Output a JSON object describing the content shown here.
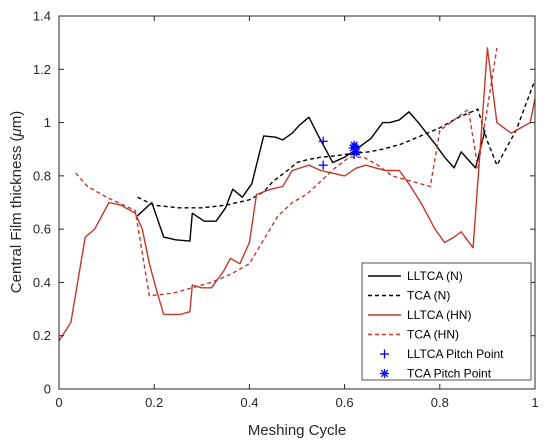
{
  "chart_data": {
    "type": "line",
    "xlabel": "Meshing Cycle",
    "ylabel_prefix": "Central Film thickness (",
    "ylabel_mu": "μ",
    "ylabel_suffix": "m)",
    "xlim": [
      0,
      1
    ],
    "ylim": [
      0,
      1.4
    ],
    "xticks": [
      0,
      0.2,
      0.4,
      0.6,
      0.8,
      1
    ],
    "xtick_labels": [
      "0",
      "0.2",
      "0.4",
      "0.6",
      "0.8",
      "1"
    ],
    "yticks": [
      0,
      0.2,
      0.4,
      0.6,
      0.8,
      1,
      1.2,
      1.4
    ],
    "ytick_labels": [
      "0",
      "0.2",
      "0.4",
      "0.6",
      "0.8",
      "1",
      "1.2",
      "1.4"
    ],
    "grid": false,
    "legend_position": "bottom-right",
    "series": [
      {
        "name": "LLTCA (N)",
        "color": "#000000",
        "style": "solid",
        "x": [
          0.165,
          0.195,
          0.22,
          0.245,
          0.275,
          0.28,
          0.305,
          0.33,
          0.35,
          0.365,
          0.385,
          0.405,
          0.43,
          0.455,
          0.47,
          0.49,
          0.505,
          0.525,
          0.545,
          0.575,
          0.6,
          0.625,
          0.655,
          0.68,
          0.695,
          0.715,
          0.735,
          0.755,
          0.79,
          0.81,
          0.83,
          0.845,
          0.875,
          0.895
        ],
        "y": [
          0.65,
          0.7,
          0.57,
          0.56,
          0.555,
          0.66,
          0.63,
          0.63,
          0.68,
          0.75,
          0.72,
          0.77,
          0.95,
          0.945,
          0.935,
          0.96,
          0.99,
          1.02,
          0.95,
          0.85,
          0.87,
          0.9,
          0.94,
          1.0,
          1.0,
          1.01,
          1.04,
          1.0,
          0.92,
          0.87,
          0.83,
          0.89,
          0.83,
          0.97
        ]
      },
      {
        "name": "TCA (N)",
        "color": "#000000",
        "style": "dashed",
        "x": [
          0.165,
          0.2,
          0.25,
          0.3,
          0.35,
          0.4,
          0.43,
          0.45,
          0.48,
          0.5,
          0.52,
          0.55,
          0.58,
          0.6,
          0.62,
          0.65,
          0.68,
          0.72,
          0.76,
          0.8,
          0.84,
          0.88,
          0.9,
          0.92,
          0.96,
          1.0
        ],
        "y": [
          0.72,
          0.69,
          0.68,
          0.68,
          0.69,
          0.71,
          0.74,
          0.78,
          0.82,
          0.85,
          0.86,
          0.87,
          0.875,
          0.88,
          0.885,
          0.89,
          0.9,
          0.92,
          0.95,
          0.98,
          1.02,
          1.05,
          0.93,
          0.84,
          0.97,
          1.16
        ]
      },
      {
        "name": "LLTCA (HN)",
        "color": "#c0392b",
        "style": "solid",
        "x": [
          0.0,
          0.025,
          0.055,
          0.075,
          0.105,
          0.13,
          0.16,
          0.175,
          0.19,
          0.205,
          0.22,
          0.235,
          0.255,
          0.275,
          0.28,
          0.3,
          0.32,
          0.345,
          0.36,
          0.38,
          0.4,
          0.415,
          0.445,
          0.47,
          0.49,
          0.525,
          0.55,
          0.575,
          0.6,
          0.625,
          0.645,
          0.665,
          0.685,
          0.7,
          0.715,
          0.735,
          0.76,
          0.79,
          0.81,
          0.83,
          0.845,
          0.87,
          0.9,
          0.92,
          0.95,
          0.97,
          0.99,
          1.0
        ],
        "y": [
          0.18,
          0.25,
          0.57,
          0.6,
          0.7,
          0.69,
          0.66,
          0.6,
          0.47,
          0.37,
          0.28,
          0.28,
          0.28,
          0.29,
          0.39,
          0.38,
          0.38,
          0.44,
          0.49,
          0.47,
          0.55,
          0.73,
          0.75,
          0.76,
          0.82,
          0.84,
          0.82,
          0.81,
          0.8,
          0.83,
          0.84,
          0.83,
          0.82,
          0.82,
          0.82,
          0.77,
          0.7,
          0.6,
          0.55,
          0.57,
          0.59,
          0.53,
          1.28,
          1.0,
          0.96,
          0.98,
          1.0,
          1.09
        ]
      },
      {
        "name": "TCA (HN)",
        "color": "#c0392b",
        "style": "dashed",
        "x": [
          0.035,
          0.06,
          0.1,
          0.16,
          0.19,
          0.24,
          0.28,
          0.32,
          0.36,
          0.4,
          0.43,
          0.46,
          0.49,
          0.52,
          0.55,
          0.58,
          0.61,
          0.64,
          0.67,
          0.7,
          0.74,
          0.78,
          0.8,
          0.83,
          0.86,
          0.88,
          0.92
        ],
        "y": [
          0.81,
          0.76,
          0.72,
          0.67,
          0.35,
          0.36,
          0.38,
          0.4,
          0.43,
          0.47,
          0.56,
          0.65,
          0.7,
          0.73,
          0.78,
          0.83,
          0.87,
          0.87,
          0.84,
          0.8,
          0.78,
          0.76,
          0.97,
          1.01,
          1.05,
          0.83,
          1.28
        ]
      },
      {
        "name": "LLTCA Pitch Point",
        "color": "#0000ff",
        "marker": "plus",
        "x": [
          0.555,
          0.555,
          0.62,
          0.625
        ],
        "y": [
          0.93,
          0.84,
          0.88,
          0.91
        ]
      },
      {
        "name": "TCA Pitch Point",
        "color": "#0000ff",
        "marker": "asterisk",
        "x": [
          0.618,
          0.625,
          0.62
        ],
        "y": [
          0.905,
          0.89,
          0.915
        ]
      }
    ]
  }
}
